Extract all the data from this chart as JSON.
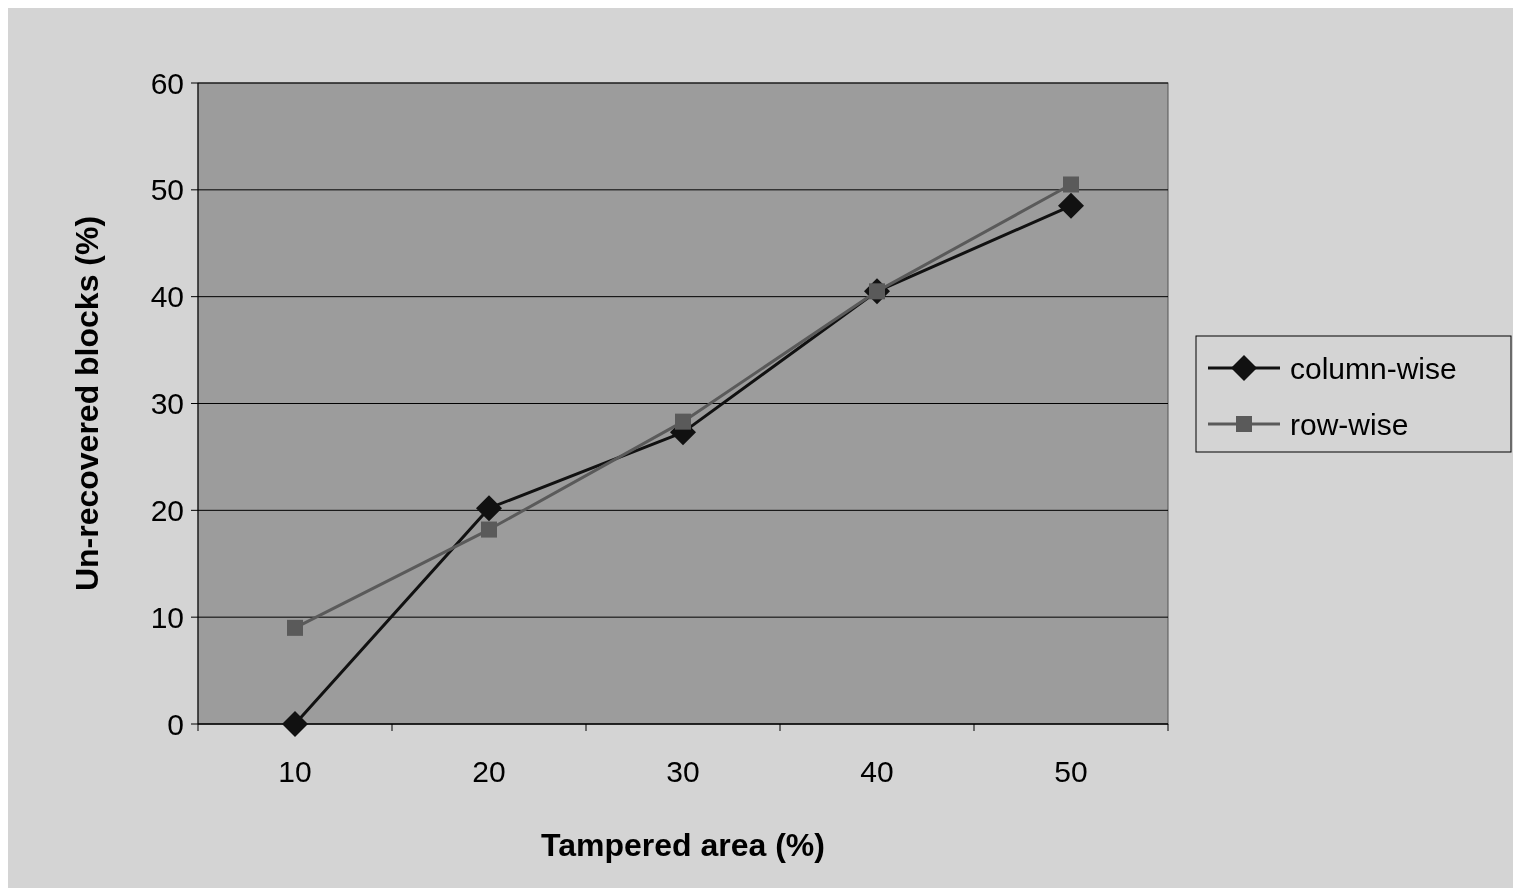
{
  "chart_data": {
    "type": "line",
    "xlabel": "Tampered area (%)",
    "ylabel": "Un-recovered blocks (%)",
    "categories": [
      "10",
      "20",
      "30",
      "40",
      "50"
    ],
    "series": [
      {
        "name": "column-wise",
        "color": "#111111",
        "marker": "diamond",
        "values": [
          0,
          20.2,
          27.3,
          40.5,
          48.5
        ]
      },
      {
        "name": "row-wise",
        "color": "#5a5a5a",
        "marker": "square",
        "values": [
          9,
          18.2,
          28.3,
          40.5,
          50.5
        ]
      }
    ],
    "ylim": [
      0,
      60
    ],
    "yticks": [
      0,
      10,
      20,
      30,
      40,
      50,
      60
    ],
    "grid": "y",
    "legend": "right"
  }
}
